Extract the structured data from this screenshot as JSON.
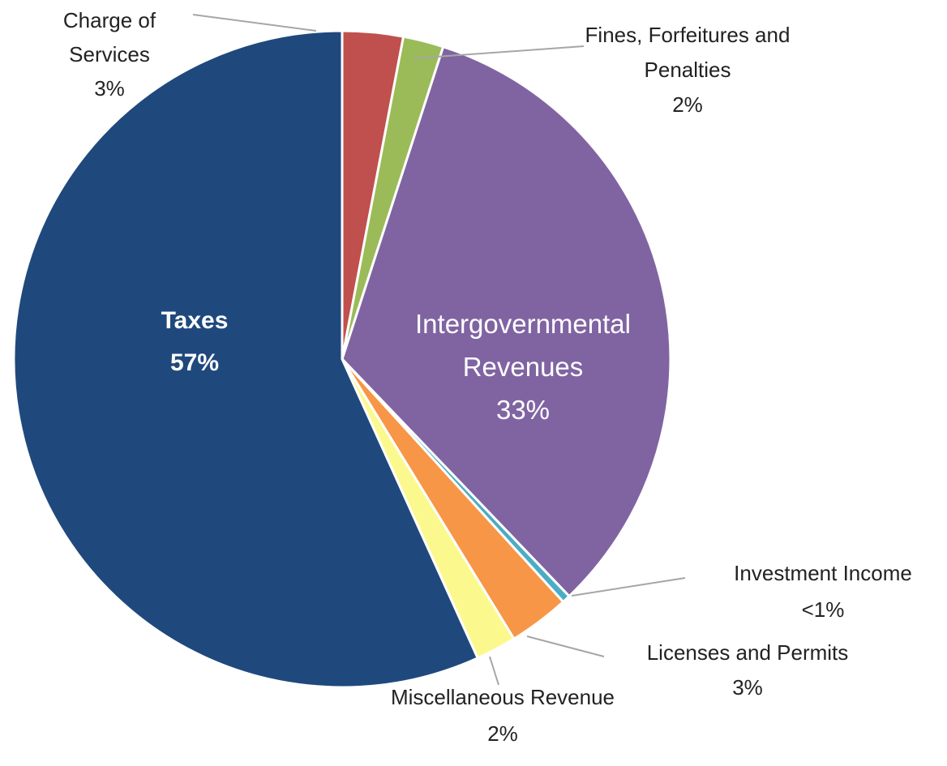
{
  "chart_data": {
    "type": "pie",
    "categories": [
      "Charge of Services",
      "Fines, Forfeitures and Penalties",
      "Intergovernmental Revenues",
      "Investment Income",
      "Licenses and Permits",
      "Miscellaneous Revenue",
      "Taxes"
    ],
    "values": [
      3,
      2,
      33,
      0.4,
      3,
      2,
      57
    ],
    "value_labels": [
      "3%",
      "2%",
      "33%",
      "<1%",
      "3%",
      "2%",
      "57%"
    ],
    "colors": [
      "#c0504d",
      "#9bbb59",
      "#8064a2",
      "#4bacc6",
      "#f79646",
      "#fbf98e",
      "#1f497d"
    ]
  }
}
